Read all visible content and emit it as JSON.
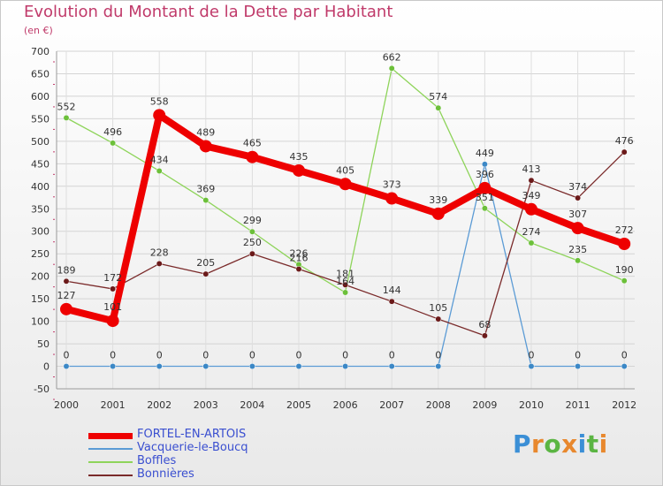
{
  "chart_data": {
    "type": "line",
    "title": "Evolution du Montant de la Dette par Habitant",
    "subtitle": "(en €)",
    "xlabel": "",
    "ylabel": "",
    "ylim": [
      -50,
      700
    ],
    "y_ticks": [
      -50,
      0,
      50,
      100,
      150,
      200,
      250,
      300,
      350,
      400,
      450,
      500,
      550,
      600,
      650,
      700
    ],
    "categories": [
      "2000",
      "2001",
      "2002",
      "2003",
      "2004",
      "2005",
      "2006",
      "2007",
      "2008",
      "2009",
      "2010",
      "2011",
      "2012"
    ],
    "series": [
      {
        "name": "FORTEL-EN-ARTOIS",
        "color": "#ee0000",
        "marker_color": "#ee0000",
        "emphasis": true,
        "values": [
          127,
          101,
          558,
          489,
          465,
          435,
          405,
          373,
          339,
          396,
          349,
          307,
          272
        ],
        "labels": [
          "127",
          "101",
          "558",
          "489",
          "465",
          "435",
          "405",
          "373",
          "339",
          "396",
          "349",
          "307",
          "272"
        ]
      },
      {
        "name": "Vacquerie-le-Boucq",
        "color": "#5b9bd5",
        "marker_color": "#3c88c6",
        "emphasis": false,
        "values": [
          0,
          0,
          0,
          0,
          0,
          0,
          0,
          0,
          0,
          449,
          0,
          0,
          0
        ],
        "labels": [
          "0",
          "0",
          "0",
          "0",
          "0",
          "0",
          "0",
          "0",
          "0",
          "449",
          "0",
          "0",
          "0"
        ]
      },
      {
        "name": "Boffles",
        "color": "#8ed45a",
        "marker_color": "#6cc03a",
        "emphasis": false,
        "values": [
          552,
          496,
          434,
          369,
          299,
          226,
          164,
          662,
          574,
          351,
          274,
          235,
          190
        ],
        "labels": [
          "552",
          "496",
          "434",
          "369",
          "299",
          "226",
          "164",
          "662",
          "574",
          "351",
          "274",
          "235",
          "190"
        ]
      },
      {
        "name": "Bonnières",
        "color": "#7a2a2a",
        "marker_color": "#6b1a1a",
        "emphasis": false,
        "values": [
          189,
          172,
          228,
          205,
          250,
          216,
          181,
          144,
          105,
          68,
          413,
          374,
          476
        ],
        "labels": [
          "189",
          "172",
          "228",
          "205",
          "250",
          "216",
          "181",
          "144",
          "105",
          "68",
          "413",
          "374",
          "476"
        ]
      }
    ],
    "legend_position": "bottom-left"
  },
  "logo": {
    "letters": [
      "P",
      "r",
      "o",
      "x",
      "i",
      "t",
      "i"
    ]
  }
}
